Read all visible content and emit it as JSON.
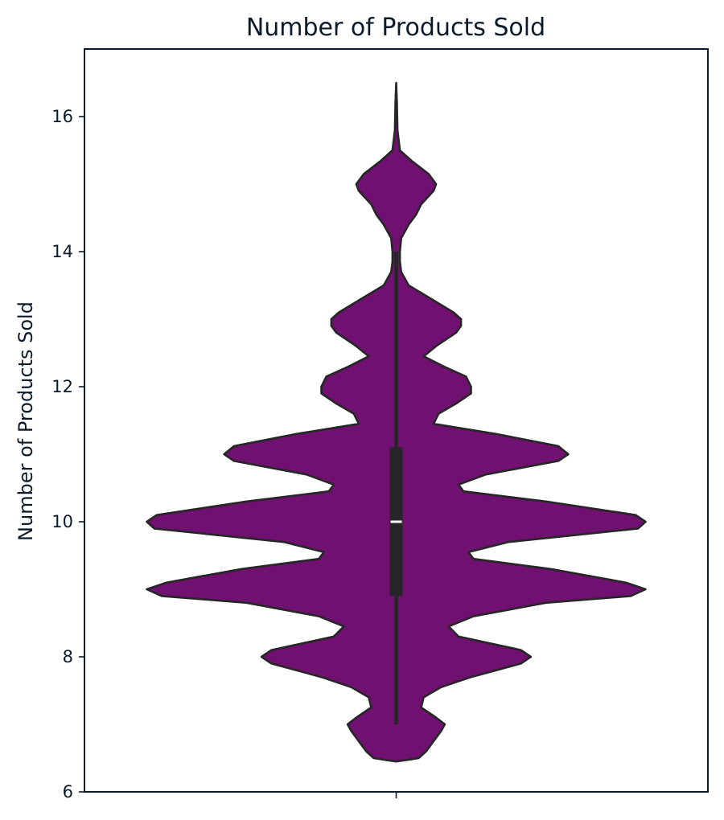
{
  "chart_data": {
    "type": "violin",
    "title": "Number of Products Sold",
    "xlabel": "",
    "ylabel": "Number of Products Sold",
    "ylim": [
      6,
      17
    ],
    "yticks": [
      6,
      8,
      10,
      12,
      14,
      16
    ],
    "x_categories": [
      ""
    ],
    "grid": false,
    "legend": "none",
    "colors": {
      "violin_fill": "#701070",
      "violin_edge": "#262626",
      "box": "#262626",
      "median": "#ffffff",
      "axis": "#0b1b2b"
    },
    "density_profile": [
      [
        6.45,
        0.0
      ],
      [
        6.47,
        0.04
      ],
      [
        6.5,
        0.09
      ],
      [
        6.6,
        0.12
      ],
      [
        6.75,
        0.15
      ],
      [
        6.9,
        0.18
      ],
      [
        7.0,
        0.195
      ],
      [
        7.1,
        0.16
      ],
      [
        7.25,
        0.1
      ],
      [
        7.4,
        0.11
      ],
      [
        7.55,
        0.18
      ],
      [
        7.7,
        0.3
      ],
      [
        7.9,
        0.5
      ],
      [
        8.0,
        0.54
      ],
      [
        8.1,
        0.5
      ],
      [
        8.3,
        0.25
      ],
      [
        8.45,
        0.21
      ],
      [
        8.6,
        0.31
      ],
      [
        8.8,
        0.6
      ],
      [
        8.9,
        0.94
      ],
      [
        9.0,
        1.0
      ],
      [
        9.1,
        0.92
      ],
      [
        9.3,
        0.62
      ],
      [
        9.45,
        0.31
      ],
      [
        9.55,
        0.29
      ],
      [
        9.7,
        0.45
      ],
      [
        9.9,
        0.97
      ],
      [
        10.0,
        1.0
      ],
      [
        10.1,
        0.96
      ],
      [
        10.3,
        0.6
      ],
      [
        10.45,
        0.27
      ],
      [
        10.55,
        0.25
      ],
      [
        10.7,
        0.36
      ],
      [
        10.9,
        0.65
      ],
      [
        11.0,
        0.69
      ],
      [
        11.12,
        0.65
      ],
      [
        11.3,
        0.4
      ],
      [
        11.45,
        0.15
      ],
      [
        11.6,
        0.17
      ],
      [
        11.75,
        0.24
      ],
      [
        11.9,
        0.3
      ],
      [
        12.0,
        0.3
      ],
      [
        12.15,
        0.28
      ],
      [
        12.3,
        0.19
      ],
      [
        12.45,
        0.11
      ],
      [
        12.6,
        0.16
      ],
      [
        12.8,
        0.24
      ],
      [
        12.9,
        0.26
      ],
      [
        13.0,
        0.26
      ],
      [
        13.1,
        0.23
      ],
      [
        13.3,
        0.14
      ],
      [
        13.5,
        0.05
      ],
      [
        13.7,
        0.02
      ],
      [
        13.85,
        0.015
      ],
      [
        14.0,
        0.015
      ],
      [
        14.2,
        0.02
      ],
      [
        14.4,
        0.05
      ],
      [
        14.55,
        0.08
      ],
      [
        14.7,
        0.1
      ],
      [
        14.9,
        0.15
      ],
      [
        15.0,
        0.16
      ],
      [
        15.15,
        0.13
      ],
      [
        15.35,
        0.06
      ],
      [
        15.5,
        0.015
      ],
      [
        15.8,
        0.005
      ],
      [
        16.2,
        0.003
      ],
      [
        16.5,
        0.0
      ]
    ],
    "box": {
      "q1": 8.9,
      "median": 10.0,
      "q3": 11.1,
      "whisker_low": 7.0,
      "whisker_high": 14.0
    }
  }
}
